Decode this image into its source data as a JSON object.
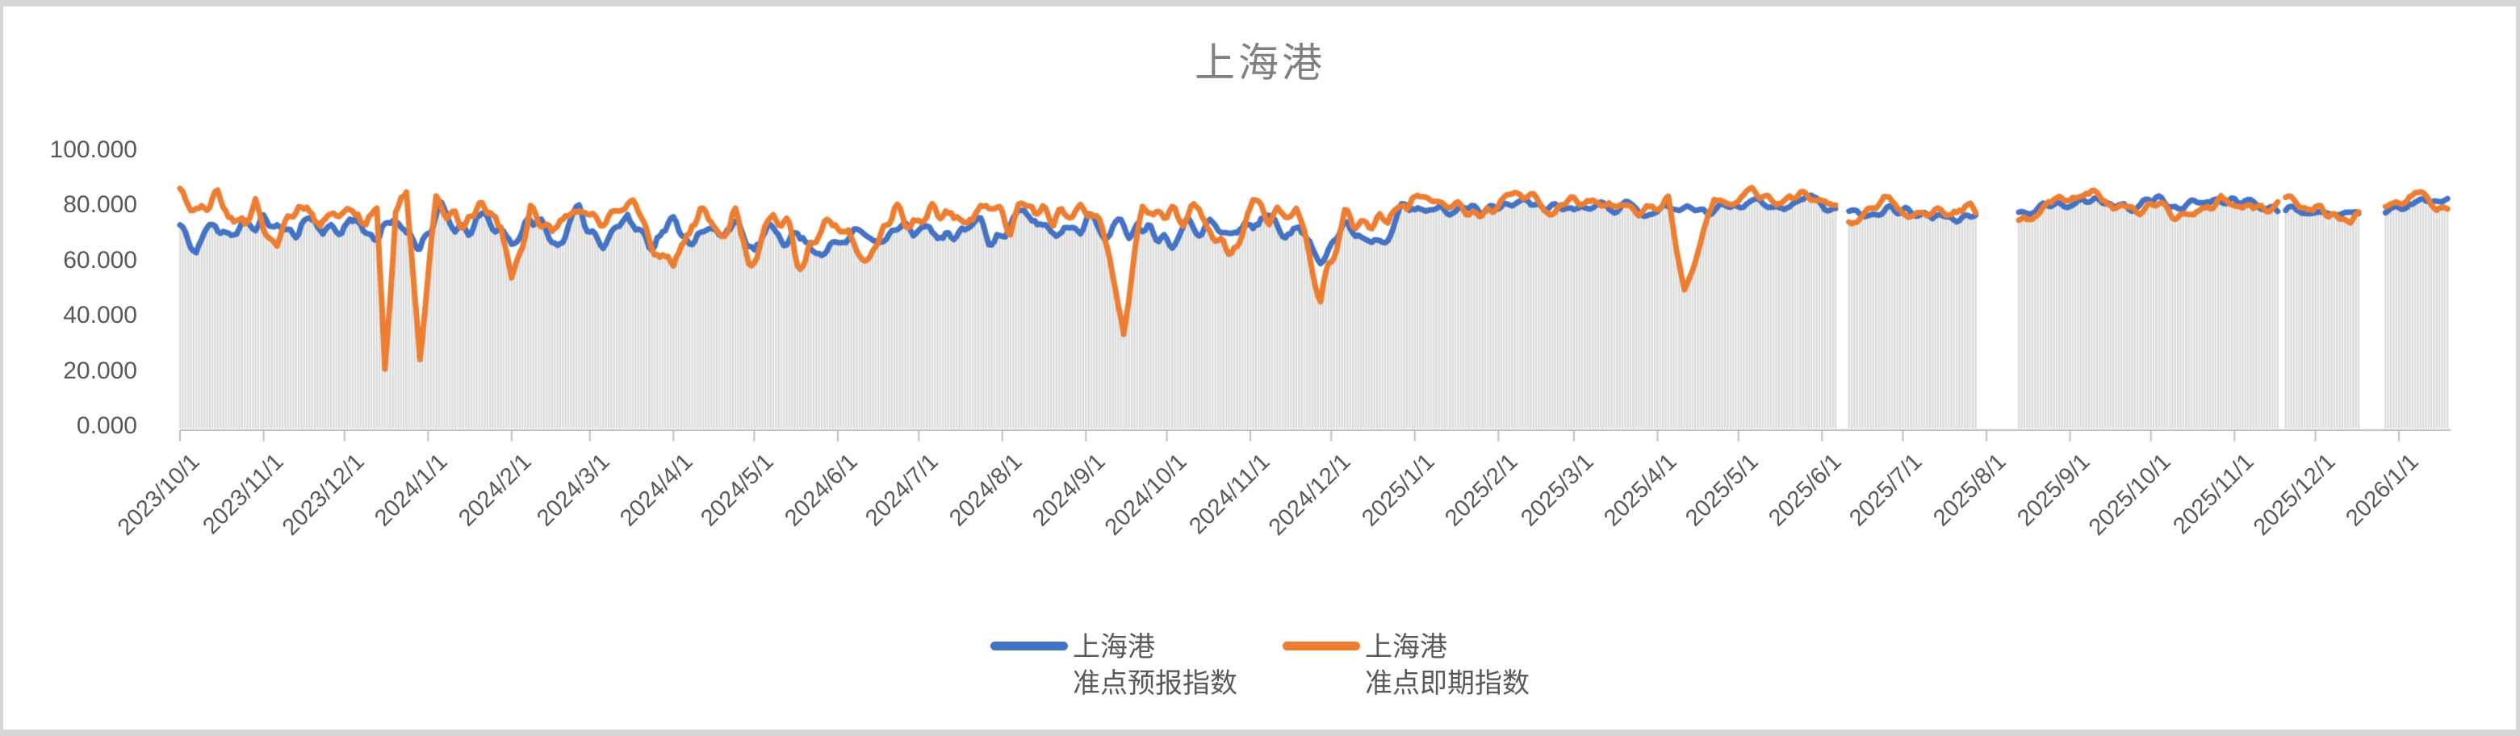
{
  "title": "上海港",
  "legend": {
    "items": [
      {
        "line1": "上海港",
        "line2": "准点预报指数",
        "color": "#4472C4"
      },
      {
        "line1": "上海港",
        "line2": "准点即期指数",
        "color": "#ED7D31"
      }
    ],
    "position": "bottom"
  },
  "colors": {
    "page_background": "#d6d6d6",
    "chart_background": "#ffffff",
    "drop_line": "#dbdbdb",
    "axis_line": "#bfbfbf",
    "tick_mark": "#bfbfbf",
    "axis_text": "#595959",
    "title_text": "#808080",
    "series_blue": "#4472C4",
    "series_orange": "#ED7D31"
  },
  "chart_data": {
    "type": "line",
    "title": "上海港",
    "xlabel": "",
    "ylabel": "",
    "ylim": [
      0,
      100
    ],
    "y_ticks": [
      0,
      20,
      40,
      60,
      80,
      100
    ],
    "y_tick_labels": [
      "0.000",
      "20.000",
      "40.000",
      "60.000",
      "80.000",
      "100.000"
    ],
    "x_tick_labels": [
      "2023/10/1",
      "2023/11/1",
      "2023/12/1",
      "2024/1/1",
      "2024/2/1",
      "2024/3/1",
      "2024/4/1",
      "2024/5/1",
      "2024/6/1",
      "2024/7/1",
      "2024/8/1",
      "2024/9/1",
      "2024/10/1",
      "2024/11/1",
      "2024/12/1",
      "2025/1/1",
      "2025/2/1",
      "2025/3/1",
      "2025/4/1",
      "2025/5/1",
      "2025/6/1",
      "2025/7/1",
      "2025/8/1",
      "2025/9/1",
      "2025/10/1",
      "2025/11/1",
      "2025/12/1",
      "2026/1/1"
    ],
    "x_start": "2023-10-01",
    "x_end": "2026-01-19",
    "frequency": "daily",
    "grid": "vertical drop lines from each daily point to axis",
    "legend_position": "bottom",
    "data_gaps": [
      [
        "2025-06-07",
        "2025-06-10"
      ],
      [
        "2025-07-29",
        "2025-08-12"
      ],
      [
        "2025-11-18",
        "2025-11-19"
      ],
      [
        "2025-12-18",
        "2025-12-26"
      ]
    ],
    "noise_transition_date": "2025-01-01",
    "noise_seed": 11,
    "series": [
      {
        "name": "上海港 准点预报指数",
        "color": "#4472C4",
        "line_width": 7,
        "noise_amp_before": 4.5,
        "noise_amp_after": 2.0,
        "anchors": [
          [
            "2023-10-01",
            72
          ],
          [
            "2023-10-07",
            64
          ],
          [
            "2023-10-14",
            76
          ],
          [
            "2023-10-22",
            70
          ],
          [
            "2023-11-01",
            76
          ],
          [
            "2023-11-10",
            70
          ],
          [
            "2023-11-18",
            77
          ],
          [
            "2023-11-26",
            71
          ],
          [
            "2023-12-05",
            76
          ],
          [
            "2023-12-14",
            69
          ],
          [
            "2023-12-22",
            75
          ],
          [
            "2023-12-29",
            68
          ],
          [
            "2024-01-06",
            77
          ],
          [
            "2024-01-14",
            70
          ],
          [
            "2024-01-22",
            76
          ],
          [
            "2024-02-01",
            69
          ],
          [
            "2024-02-10",
            75
          ],
          [
            "2024-02-18",
            68
          ],
          [
            "2024-02-26",
            76
          ],
          [
            "2024-03-06",
            70
          ],
          [
            "2024-03-15",
            76
          ],
          [
            "2024-03-24",
            69
          ],
          [
            "2024-04-02",
            74
          ],
          [
            "2024-04-12",
            68
          ],
          [
            "2024-04-21",
            75
          ],
          [
            "2024-05-01",
            64
          ],
          [
            "2024-05-10",
            73
          ],
          [
            "2024-05-20",
            68
          ],
          [
            "2024-06-01",
            65
          ],
          [
            "2024-06-10",
            74
          ],
          [
            "2024-06-20",
            69
          ],
          [
            "2024-07-01",
            74
          ],
          [
            "2024-07-10",
            66
          ],
          [
            "2024-07-20",
            75
          ],
          [
            "2024-08-01",
            70
          ],
          [
            "2024-08-10",
            77
          ],
          [
            "2024-08-20",
            72
          ],
          [
            "2024-09-01",
            77
          ],
          [
            "2024-09-10",
            70
          ],
          [
            "2024-09-20",
            76
          ],
          [
            "2024-10-01",
            71
          ],
          [
            "2024-10-12",
            76
          ],
          [
            "2024-10-24",
            69
          ],
          [
            "2024-11-05",
            77
          ],
          [
            "2024-11-15",
            72
          ],
          [
            "2024-11-27",
            66
          ],
          [
            "2024-12-08",
            73
          ],
          [
            "2024-12-16",
            70
          ],
          [
            "2024-12-26",
            78
          ],
          [
            "2025-01-10",
            80
          ],
          [
            "2025-01-25",
            79
          ],
          [
            "2025-02-10",
            82
          ],
          [
            "2025-02-25",
            80
          ],
          [
            "2025-03-12",
            82
          ],
          [
            "2025-03-27",
            79
          ],
          [
            "2025-04-08",
            80
          ],
          [
            "2025-04-20",
            79
          ],
          [
            "2025-05-05",
            83
          ],
          [
            "2025-05-20",
            80
          ],
          [
            "2025-05-27",
            84
          ],
          [
            "2025-06-03",
            80
          ],
          [
            "2025-06-15",
            78
          ],
          [
            "2025-06-28",
            80
          ],
          [
            "2025-07-12",
            77
          ],
          [
            "2025-07-25",
            76
          ],
          [
            "2025-08-14",
            78
          ],
          [
            "2025-08-28",
            80
          ],
          [
            "2025-09-08",
            83
          ],
          [
            "2025-09-20",
            80
          ],
          [
            "2025-10-03",
            83
          ],
          [
            "2025-10-15",
            80
          ],
          [
            "2025-10-28",
            83
          ],
          [
            "2025-11-10",
            81
          ],
          [
            "2025-11-24",
            80
          ],
          [
            "2025-12-05",
            79
          ],
          [
            "2025-12-15",
            76
          ],
          [
            "2025-12-28",
            80
          ],
          [
            "2026-01-08",
            82
          ],
          [
            "2026-01-19",
            83
          ]
        ]
      },
      {
        "name": "上海港 准点即期指数",
        "color": "#ED7D31",
        "line_width": 7,
        "noise_amp_before": 5.0,
        "noise_amp_after": 2.8,
        "anchors": [
          [
            "2023-10-01",
            84
          ],
          [
            "2023-10-08",
            78
          ],
          [
            "2023-10-15",
            84
          ],
          [
            "2023-10-22",
            71
          ],
          [
            "2023-10-29",
            82
          ],
          [
            "2023-11-06",
            62
          ],
          [
            "2023-11-14",
            82
          ],
          [
            "2023-11-22",
            75
          ],
          [
            "2023-11-30",
            83
          ],
          [
            "2023-12-08",
            76
          ],
          [
            "2023-12-13",
            80
          ],
          [
            "2023-12-16",
            22
          ],
          [
            "2023-12-20",
            79
          ],
          [
            "2023-12-24",
            83
          ],
          [
            "2023-12-29",
            28
          ],
          [
            "2024-01-04",
            80
          ],
          [
            "2024-01-12",
            75
          ],
          [
            "2024-01-20",
            82
          ],
          [
            "2024-01-28",
            76
          ],
          [
            "2024-02-01",
            56
          ],
          [
            "2024-02-08",
            80
          ],
          [
            "2024-02-16",
            74
          ],
          [
            "2024-02-24",
            82
          ],
          [
            "2024-03-04",
            75
          ],
          [
            "2024-03-12",
            81
          ],
          [
            "2024-03-20",
            74
          ],
          [
            "2024-03-28",
            60
          ],
          [
            "2024-04-01",
            55
          ],
          [
            "2024-04-08",
            78
          ],
          [
            "2024-04-16",
            72
          ],
          [
            "2024-04-24",
            80
          ],
          [
            "2024-04-29",
            61
          ],
          [
            "2024-05-08",
            79
          ],
          [
            "2024-05-15",
            72
          ],
          [
            "2024-05-20",
            59
          ],
          [
            "2024-05-28",
            79
          ],
          [
            "2024-06-05",
            72
          ],
          [
            "2024-06-13",
            62
          ],
          [
            "2024-06-22",
            81
          ],
          [
            "2024-07-01",
            74
          ],
          [
            "2024-07-10",
            80
          ],
          [
            "2024-07-18",
            73
          ],
          [
            "2024-07-26",
            81
          ],
          [
            "2024-08-04",
            74
          ],
          [
            "2024-08-12",
            80
          ],
          [
            "2024-08-20",
            74
          ],
          [
            "2024-08-28",
            82
          ],
          [
            "2024-09-06",
            76
          ],
          [
            "2024-09-15",
            33
          ],
          [
            "2024-09-22",
            80
          ],
          [
            "2024-10-01",
            74
          ],
          [
            "2024-10-10",
            80
          ],
          [
            "2024-10-17",
            72
          ],
          [
            "2024-10-24",
            67
          ],
          [
            "2024-11-02",
            80
          ],
          [
            "2024-11-10",
            74
          ],
          [
            "2024-11-18",
            79
          ],
          [
            "2024-11-27",
            48
          ],
          [
            "2024-12-06",
            74
          ],
          [
            "2024-12-14",
            79
          ],
          [
            "2024-12-22",
            76
          ],
          [
            "2024-12-30",
            81
          ],
          [
            "2025-01-12",
            82
          ],
          [
            "2025-01-26",
            78
          ],
          [
            "2025-02-08",
            84
          ],
          [
            "2025-02-22",
            79
          ],
          [
            "2025-03-08",
            83
          ],
          [
            "2025-03-22",
            78
          ],
          [
            "2025-04-05",
            81
          ],
          [
            "2025-04-11",
            49
          ],
          [
            "2025-04-22",
            83
          ],
          [
            "2025-05-06",
            85
          ],
          [
            "2025-05-18",
            80
          ],
          [
            "2025-05-26",
            86
          ],
          [
            "2025-06-03",
            80
          ],
          [
            "2025-06-14",
            77
          ],
          [
            "2025-06-27",
            82
          ],
          [
            "2025-07-10",
            76
          ],
          [
            "2025-07-22",
            80
          ],
          [
            "2025-08-14",
            75
          ],
          [
            "2025-08-24",
            81
          ],
          [
            "2025-09-07",
            86
          ],
          [
            "2025-09-18",
            78
          ],
          [
            "2025-10-01",
            82
          ],
          [
            "2025-10-14",
            77
          ],
          [
            "2025-10-27",
            83
          ],
          [
            "2025-11-08",
            78
          ],
          [
            "2025-11-20",
            82
          ],
          [
            "2025-12-02",
            80
          ],
          [
            "2025-12-14",
            75
          ],
          [
            "2025-12-28",
            82
          ],
          [
            "2026-01-08",
            84
          ],
          [
            "2026-01-19",
            82
          ]
        ]
      }
    ]
  }
}
